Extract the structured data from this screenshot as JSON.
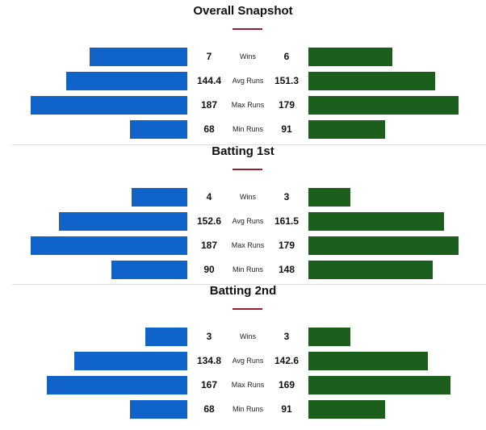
{
  "chart_data": [
    {
      "type": "bar",
      "title": "Overall Snapshot",
      "categories": [
        "Wins",
        "Avg Runs",
        "Max Runs",
        "Min Runs"
      ],
      "series": [
        {
          "color": "#0f63c9",
          "values": [
            7,
            144.4,
            187,
            68
          ]
        },
        {
          "color": "#1c5e1c",
          "values": [
            6,
            151.3,
            179,
            91
          ]
        }
      ]
    },
    {
      "type": "bar",
      "title": "Batting 1st",
      "categories": [
        "Wins",
        "Avg Runs",
        "Max Runs",
        "Min Runs"
      ],
      "series": [
        {
          "color": "#0f63c9",
          "values": [
            4,
            152.6,
            187,
            90
          ]
        },
        {
          "color": "#1c5e1c",
          "values": [
            3,
            161.5,
            179,
            148
          ]
        }
      ]
    },
    {
      "type": "bar",
      "title": "Batting 2nd",
      "categories": [
        "Wins",
        "Avg Runs",
        "Max Runs",
        "Min Runs"
      ],
      "series": [
        {
          "color": "#0f63c9",
          "values": [
            3,
            134.8,
            167,
            68
          ]
        },
        {
          "color": "#1c5e1c",
          "values": [
            3,
            142.6,
            169,
            91
          ]
        }
      ]
    }
  ]
}
